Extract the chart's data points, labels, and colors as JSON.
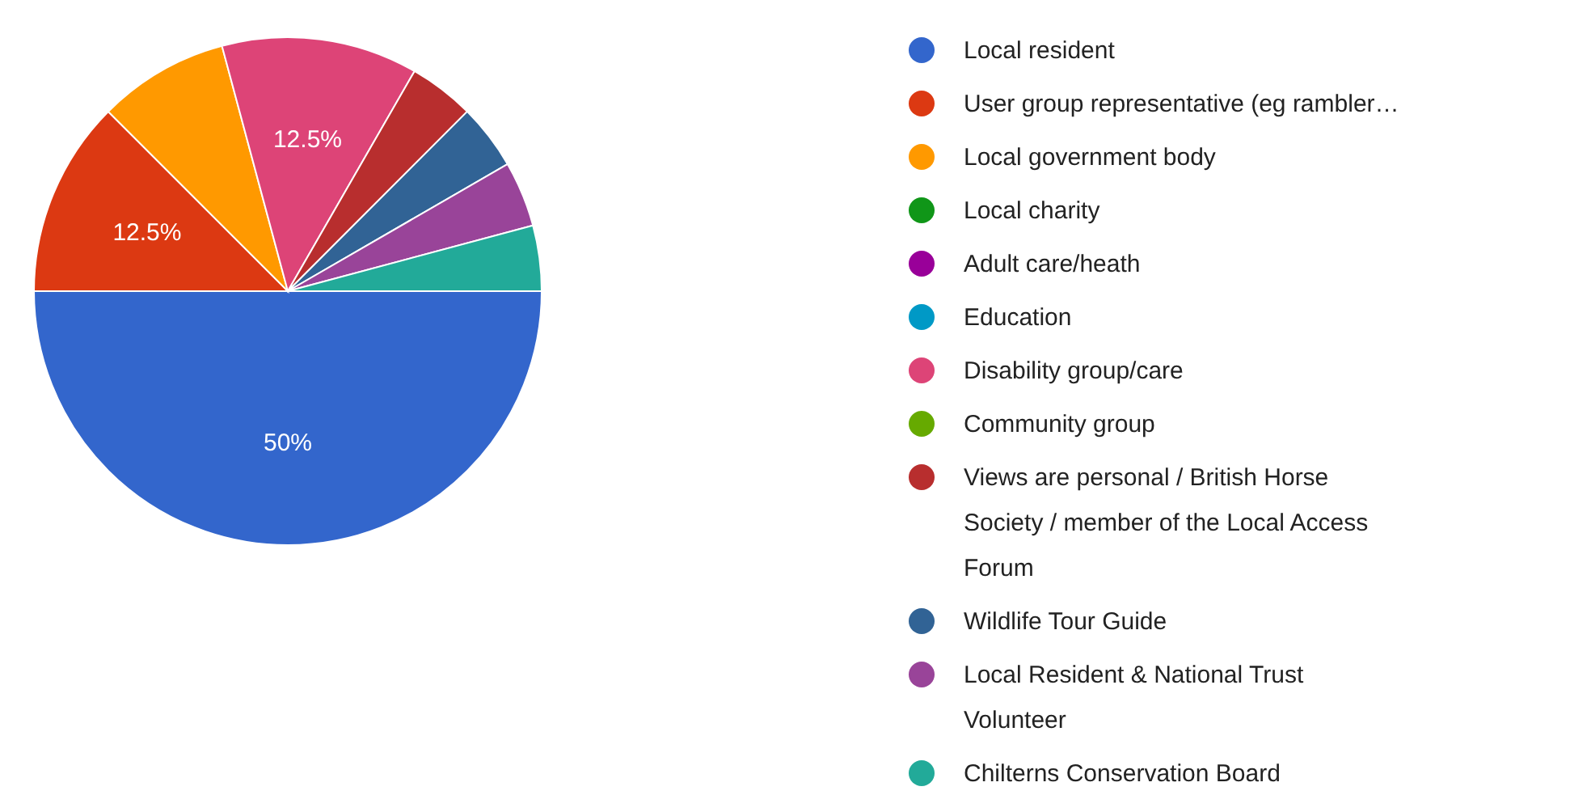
{
  "chart_data": {
    "type": "pie",
    "categories": [
      "Local resident",
      "User group representative (eg rambler…",
      "Local government body",
      "Local charity",
      "Adult care/heath",
      "Education",
      "Disability group/care",
      "Community group",
      "Views are personal / British Horse Society / member of the Local Access Forum",
      "Wildlife Tour Guide",
      "Local Resident & National Trust Volunteer",
      "Chilterns Conservation Board"
    ],
    "values": [
      50,
      12.5,
      8.33,
      0,
      0,
      0,
      12.5,
      0,
      4.17,
      4.17,
      4.17,
      4.17
    ],
    "colors": [
      "#3366cc",
      "#dc3912",
      "#ff9900",
      "#109618",
      "#990099",
      "#0099c6",
      "#dd4477",
      "#66aa00",
      "#b82e2e",
      "#316395",
      "#994499",
      "#22aa99"
    ],
    "value_labels": [
      "50%",
      "12.5%",
      null,
      null,
      null,
      null,
      "12.5%",
      null,
      null,
      null,
      null,
      null
    ],
    "legend": "right"
  }
}
